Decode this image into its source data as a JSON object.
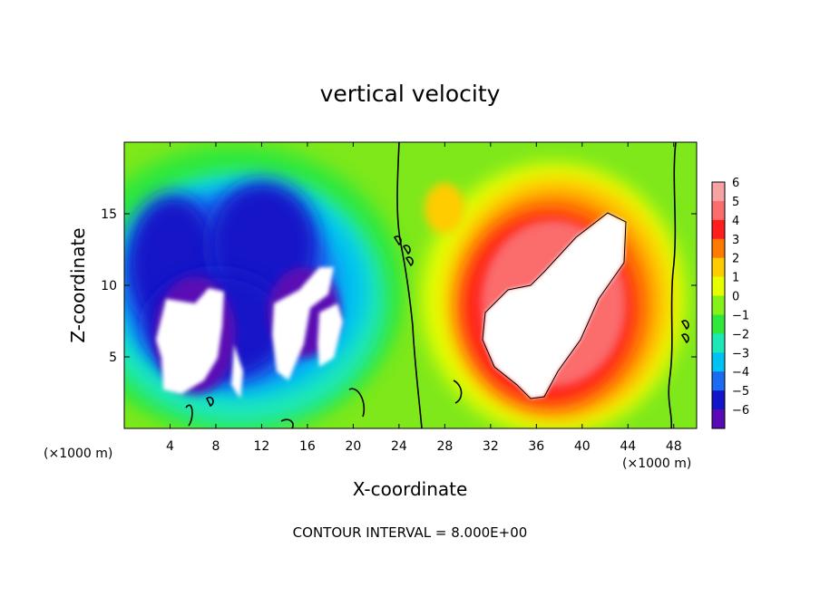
{
  "chart_data": {
    "type": "heatmap",
    "title": "vertical velocity",
    "xlabel": "X-coordinate",
    "ylabel": "Z-coordinate",
    "x_unit_left": "(×1000 m)",
    "x_unit_right": "(×1000 m)",
    "xlim": [
      0,
      50
    ],
    "ylim": [
      0,
      20
    ],
    "xticks": [
      "4",
      "8",
      "12",
      "16",
      "20",
      "24",
      "28",
      "32",
      "36",
      "40",
      "44",
      "48"
    ],
    "xtick_values": [
      4,
      8,
      12,
      16,
      20,
      24,
      28,
      32,
      36,
      40,
      44,
      48
    ],
    "yticks": [
      "5",
      "10",
      "15"
    ],
    "ytick_values": [
      5,
      10,
      15
    ],
    "colorbar": {
      "labels": [
        "6",
        "5",
        "4",
        "3",
        "2",
        "1",
        "0",
        "−1",
        "−2",
        "−3",
        "−4",
        "−5",
        "−6"
      ],
      "values": [
        6,
        5,
        4,
        3,
        2,
        1,
        0,
        -1,
        -2,
        -3,
        -4,
        -5,
        -6
      ],
      "colors": [
        "#f7a3a3",
        "#fb6c6c",
        "#ff1e1e",
        "#ff7a00",
        "#ffcc00",
        "#e6ff00",
        "#86f21a",
        "#2fe83a",
        "#1ee8b8",
        "#00c2f2",
        "#1a6bf2",
        "#1414c8",
        "#5a0ab4"
      ]
    },
    "contour_interval": "CONTOUR INTERVAL = 8.000E+00",
    "field_description_features": [
      {
        "x": 10,
        "z": 8,
        "sign": "negative",
        "peak_below": -6
      },
      {
        "x": 17,
        "z": 9,
        "sign": "negative",
        "peak_below": -6
      },
      {
        "x": 38,
        "z": 9,
        "sign": "positive",
        "peak_above": 6
      }
    ]
  }
}
